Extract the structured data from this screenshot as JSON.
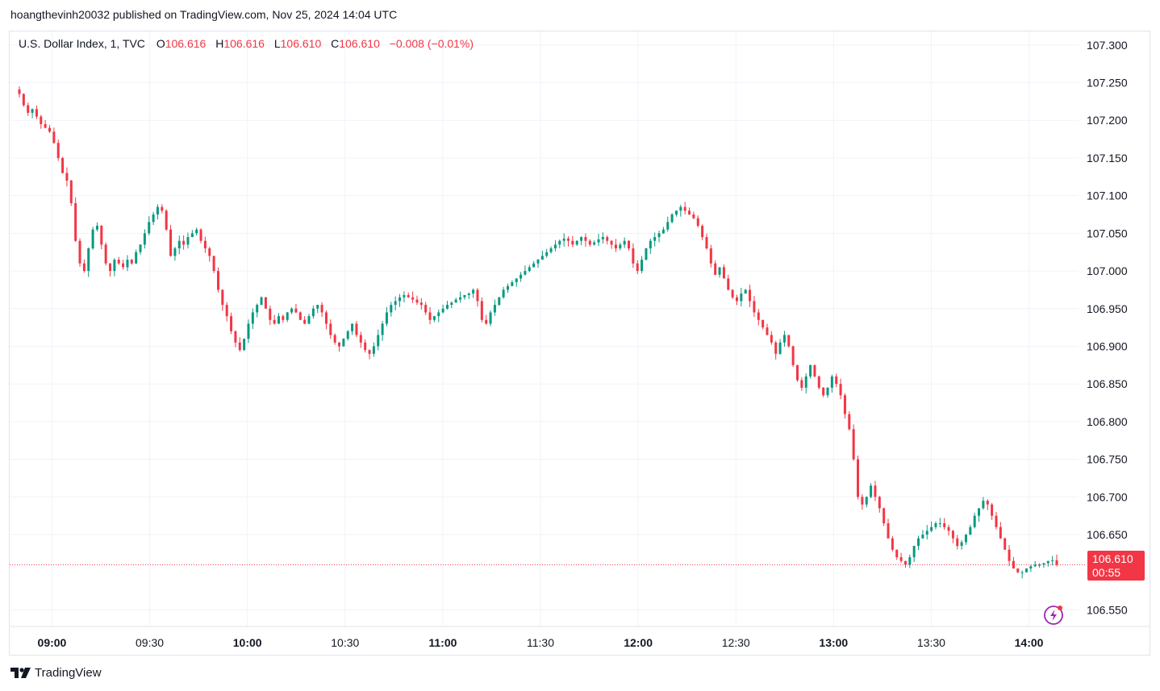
{
  "caption": "hoangthevinh20032 published on TradingView.com, Nov 25, 2024 14:04 UTC",
  "legend": {
    "symbol": "U.S. Dollar Index, 1, TVC",
    "o_label": "O",
    "o_value": "106.616",
    "h_label": "H",
    "h_value": "106.616",
    "l_label": "L",
    "l_value": "106.610",
    "c_label": "C",
    "c_value": "106.610",
    "change": "−0.008 (−0.01%)"
  },
  "price_badge": {
    "price": "106.610",
    "countdown": "00:55"
  },
  "branding": {
    "logo_text": "TradingView"
  },
  "icons": {
    "logo": "tradingview-logo-icon",
    "bolt": "lightning-bolt-icon"
  },
  "colors": {
    "up": "#089981",
    "down": "#f23645",
    "grid": "#f0f3fa",
    "bolt": "#9c27b0"
  },
  "chart_data": {
    "type": "candlestick",
    "y_ticks": [
      "107.300",
      "107.250",
      "107.200",
      "107.150",
      "107.100",
      "107.050",
      "107.000",
      "106.950",
      "106.900",
      "106.850",
      "106.800",
      "106.750",
      "106.700",
      "106.650",
      "106.550"
    ],
    "x_ticks": [
      {
        "label": "09:00",
        "major": true
      },
      {
        "label": "09:30",
        "major": false
      },
      {
        "label": "10:00",
        "major": true
      },
      {
        "label": "10:30",
        "major": false
      },
      {
        "label": "11:00",
        "major": true
      },
      {
        "label": "11:30",
        "major": false
      },
      {
        "label": "12:00",
        "major": true
      },
      {
        "label": "12:30",
        "major": false
      },
      {
        "label": "13:00",
        "major": true
      },
      {
        "label": "13:30",
        "major": false
      },
      {
        "label": "14:00",
        "major": true
      }
    ],
    "ylim": [
      106.528,
      107.318
    ],
    "start_time": "08:48",
    "interval_minutes": 1,
    "last_price": 106.61,
    "last_price_line": "dotted",
    "series_close": [
      107.235,
      107.22,
      107.21,
      107.215,
      107.205,
      107.195,
      107.19,
      107.185,
      107.17,
      107.15,
      107.13,
      107.12,
      107.09,
      107.04,
      107.01,
      107.0,
      107.03,
      107.055,
      107.06,
      107.035,
      107.01,
      107.0,
      107.015,
      107.01,
      107.005,
      107.015,
      107.01,
      107.025,
      107.035,
      107.05,
      107.065,
      107.075,
      107.085,
      107.08,
      107.055,
      107.02,
      107.03,
      107.04,
      107.035,
      107.045,
      107.05,
      107.055,
      107.04,
      107.03,
      107.02,
      107.0,
      106.975,
      106.955,
      106.94,
      106.92,
      106.905,
      106.895,
      106.91,
      106.93,
      106.945,
      106.955,
      106.965,
      106.95,
      106.935,
      106.93,
      106.94,
      106.935,
      106.945,
      106.95,
      106.945,
      106.935,
      106.93,
      106.94,
      106.95,
      106.955,
      106.945,
      106.93,
      106.915,
      106.905,
      106.9,
      106.91,
      106.92,
      106.93,
      106.915,
      106.905,
      106.895,
      106.89,
      106.9,
      106.915,
      106.93,
      106.945,
      106.955,
      106.96,
      106.965,
      106.968,
      106.965,
      106.962,
      106.958,
      106.955,
      106.945,
      106.935,
      106.94,
      106.945,
      106.95,
      106.955,
      106.958,
      106.962,
      106.965,
      106.968,
      106.97,
      106.975,
      106.96,
      106.935,
      106.93,
      106.945,
      106.955,
      106.965,
      106.975,
      106.98,
      106.985,
      106.99,
      106.995,
      107.0,
      107.005,
      107.01,
      107.015,
      107.02,
      107.025,
      107.03,
      107.035,
      107.04,
      107.043,
      107.04,
      107.035,
      107.04,
      107.045,
      107.04,
      107.035,
      107.038,
      107.042,
      107.045,
      107.04,
      107.035,
      107.03,
      107.035,
      107.04,
      107.03,
      107.01,
      107.0,
      107.015,
      107.03,
      107.04,
      107.045,
      107.05,
      107.055,
      107.065,
      107.075,
      107.08,
      107.085,
      107.08,
      107.075,
      107.07,
      107.06,
      107.045,
      107.03,
      107.01,
      106.995,
      107.005,
      106.99,
      106.975,
      106.965,
      106.96,
      106.97,
      106.975,
      106.96,
      106.945,
      106.935,
      106.925,
      106.915,
      106.905,
      106.89,
      106.905,
      106.915,
      106.9,
      106.875,
      106.855,
      106.845,
      106.86,
      106.875,
      106.86,
      106.845,
      106.835,
      106.845,
      106.86,
      106.85,
      106.835,
      106.81,
      106.79,
      106.75,
      106.7,
      106.69,
      106.7,
      106.715,
      106.7,
      106.685,
      106.665,
      106.645,
      106.63,
      106.62,
      106.615,
      106.61,
      106.62,
      106.635,
      106.645,
      106.65,
      106.655,
      106.66,
      106.665,
      106.665,
      106.66,
      106.655,
      106.645,
      106.635,
      106.64,
      106.65,
      106.66,
      106.675,
      106.685,
      106.695,
      106.69,
      106.675,
      106.66,
      106.645,
      106.63,
      106.615,
      106.605,
      106.6,
      106.6,
      106.605,
      106.608,
      106.61,
      106.61,
      106.612,
      106.615,
      106.616,
      106.61
    ]
  }
}
